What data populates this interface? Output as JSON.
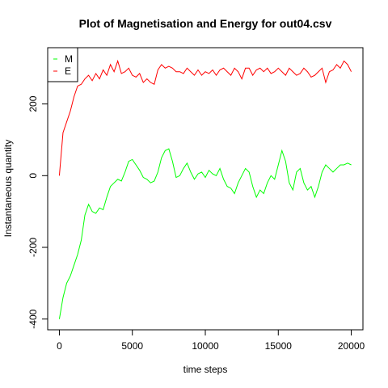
{
  "chart_data": {
    "type": "line",
    "title": "Plot of Magnetisation and Energy for out04.csv",
    "xlabel": "time steps",
    "ylabel": "Instantaneous quantity",
    "x": [
      0,
      250,
      500,
      750,
      1000,
      1250,
      1500,
      1750,
      2000,
      2250,
      2500,
      2750,
      3000,
      3250,
      3500,
      3750,
      4000,
      4250,
      4500,
      4750,
      5000,
      5250,
      5500,
      5750,
      6000,
      6250,
      6500,
      6750,
      7000,
      7250,
      7500,
      7750,
      8000,
      8250,
      8500,
      8750,
      9000,
      9250,
      9500,
      9750,
      10000,
      10250,
      10500,
      10750,
      11000,
      11250,
      11500,
      11750,
      12000,
      12250,
      12500,
      12750,
      13000,
      13250,
      13500,
      13750,
      14000,
      14250,
      14500,
      14750,
      15000,
      15250,
      15500,
      15750,
      16000,
      16250,
      16500,
      16750,
      17000,
      17250,
      17500,
      17750,
      18000,
      18250,
      18500,
      18750,
      19000,
      19250,
      19500,
      19750,
      20000
    ],
    "series": [
      {
        "name": "M",
        "color": "#00ff00",
        "values": [
          -400,
          -340,
          -300,
          -280,
          -250,
          -220,
          -180,
          -110,
          -80,
          -100,
          -105,
          -90,
          -95,
          -60,
          -30,
          -20,
          -10,
          -15,
          10,
          40,
          45,
          30,
          15,
          -5,
          -10,
          -20,
          -15,
          10,
          50,
          70,
          75,
          40,
          -5,
          0,
          20,
          35,
          10,
          -10,
          5,
          10,
          -5,
          15,
          5,
          0,
          20,
          -10,
          -30,
          -35,
          -50,
          -20,
          0,
          20,
          10,
          -30,
          -60,
          -40,
          -50,
          -20,
          0,
          -10,
          30,
          70,
          40,
          -20,
          -40,
          10,
          20,
          -20,
          -40,
          -30,
          -60,
          -30,
          10,
          30,
          20,
          10,
          20,
          30,
          30,
          35,
          30
        ]
      },
      {
        "name": "E",
        "color": "#ff0000",
        "values": [
          0,
          120,
          150,
          180,
          220,
          250,
          255,
          270,
          280,
          265,
          285,
          270,
          295,
          280,
          310,
          290,
          320,
          285,
          290,
          300,
          280,
          275,
          285,
          260,
          270,
          260,
          255,
          295,
          310,
          300,
          305,
          300,
          290,
          290,
          285,
          300,
          290,
          280,
          295,
          280,
          290,
          285,
          295,
          280,
          295,
          300,
          290,
          280,
          300,
          290,
          270,
          300,
          300,
          280,
          295,
          300,
          290,
          300,
          285,
          290,
          300,
          290,
          280,
          300,
          290,
          280,
          285,
          300,
          290,
          275,
          280,
          290,
          300,
          260,
          290,
          295,
          310,
          300,
          320,
          310,
          290
        ]
      }
    ],
    "xlim": [
      -800,
      20800
    ],
    "xticks": [
      0,
      5000,
      10000,
      15000,
      20000
    ],
    "ylim": [
      -430,
      357
    ],
    "yticks": [
      -400,
      -200,
      0,
      200
    ],
    "legend": "topleft"
  }
}
